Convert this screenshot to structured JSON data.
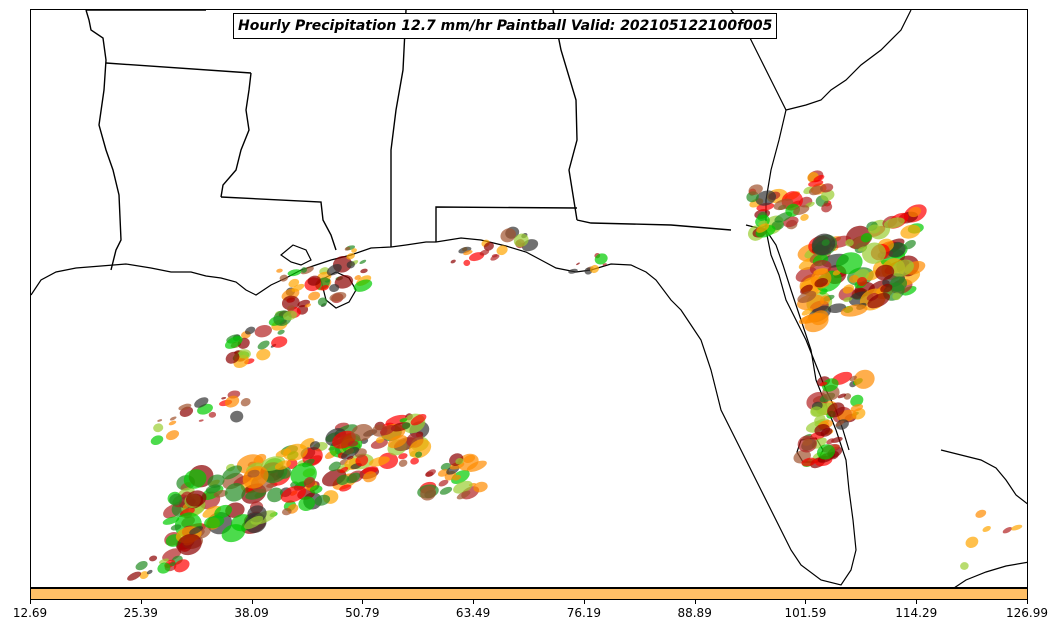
{
  "title": "Hourly Precipitation 12.7 mm/hr Paintball Valid: 202105122100f005",
  "colorbar": {
    "color": "#ffbf66",
    "ticks": [
      "12.69",
      "25.39",
      "38.09",
      "50.79",
      "63.49",
      "76.19",
      "88.89",
      "101.59",
      "114.29",
      "126.99"
    ]
  },
  "member_colors": [
    "#00cc00",
    "#228b22",
    "#ff0000",
    "#ff8c00",
    "#ffa500",
    "#9acd32",
    "#a0522d",
    "#8b0000",
    "#333333",
    "#b22222"
  ],
  "icons": [
    "coastline-icon",
    "state-border-icon"
  ]
}
